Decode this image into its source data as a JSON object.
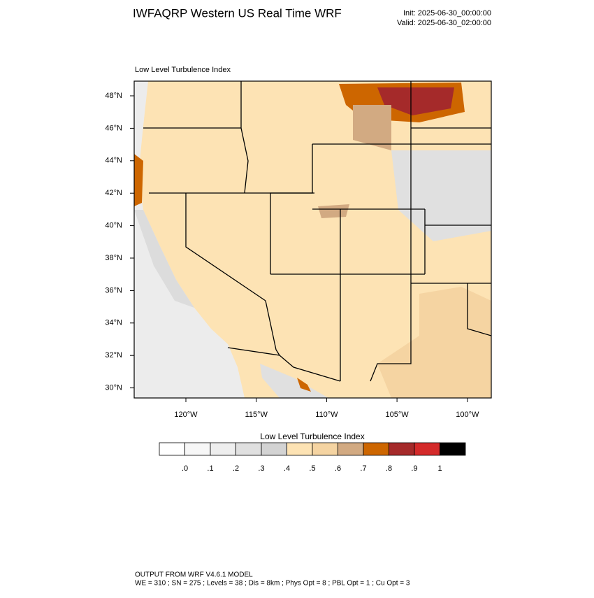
{
  "header": {
    "title": "IWFAQRP Western US Real Time WRF",
    "init": "Init: 2025-06-30_00:00:00",
    "valid": "Valid: 2025-06-30_02:00:00"
  },
  "map": {
    "title": "Low Level Turbulence Index",
    "lat_labels": [
      "48°N",
      "46°N",
      "44°N",
      "42°N",
      "40°N",
      "38°N",
      "36°N",
      "34°N",
      "32°N",
      "30°N"
    ],
    "lon_labels": [
      "120°W",
      "115°W",
      "110°W",
      "105°W",
      "100°W"
    ]
  },
  "colorbar": {
    "title": "Low Level Turbulence Index",
    "labels": [
      ".0",
      ".1",
      ".2",
      ".3",
      ".4",
      ".5",
      ".6",
      ".7",
      ".8",
      ".9",
      "1"
    ],
    "colors": [
      "#ffffff",
      "#f7f7f7",
      "#eeeeee",
      "#e0e0e0",
      "#d3d3d3",
      "#fde3b4",
      "#f5d4a2",
      "#d2aa82",
      "#cd6600",
      "#a52a2a",
      "#d42a2a",
      "#000000"
    ]
  },
  "footer": {
    "line1": "OUTPUT FROM WRF V4.6.1 MODEL",
    "line2": "WE = 310 ; SN = 275 ; Levels = 38 ; Dis = 8km ; Phys Opt = 8 ; PBL Opt = 1 ; Cu Opt = 3"
  }
}
